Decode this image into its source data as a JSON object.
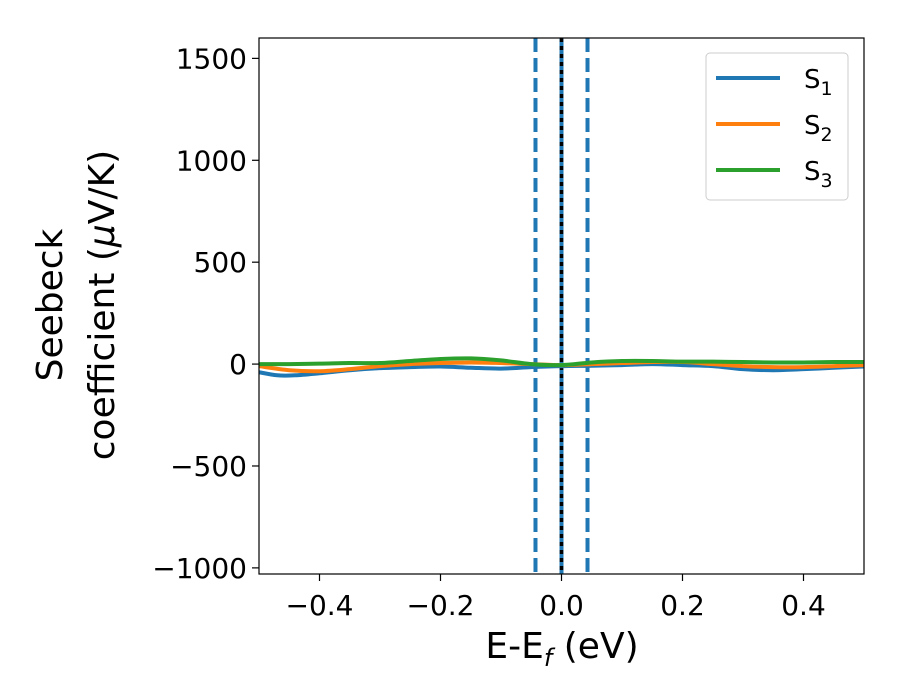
{
  "chart_data": {
    "type": "line",
    "xlabel": "E-E_f (eV)",
    "xlabel_parts": {
      "main": "E-E",
      "sub": "f",
      "tail": " (eV)"
    },
    "ylabel_line1": "Seebeck",
    "ylabel_line2_prefix": "coefficient  (",
    "ylabel_mu": "μ",
    "ylabel_line2_suffix": "V/K)",
    "xlim": [
      -0.5,
      0.5
    ],
    "ylim": [
      -1030,
      1600
    ],
    "x_ticks": [
      -0.4,
      -0.2,
      0.0,
      0.2,
      0.4
    ],
    "x_tick_labels": [
      "−0.4",
      "−0.2",
      "0.0",
      "0.2",
      "0.4"
    ],
    "y_ticks": [
      -1000,
      -500,
      0,
      500,
      1000,
      1500
    ],
    "y_tick_labels": [
      "−1000",
      "−500",
      "0",
      "500",
      "1000",
      "1500"
    ],
    "grid": false,
    "legend_position": "top-right",
    "vlines": [
      {
        "x": -0.043,
        "style": "dashed",
        "color": "#1f77b4"
      },
      {
        "x": 0.0,
        "style": "solid",
        "color": "#1f77b4"
      },
      {
        "x": 0.0,
        "style": "dotted",
        "color": "#000000"
      },
      {
        "x": 0.043,
        "style": "dashed",
        "color": "#1f77b4"
      }
    ],
    "series": [
      {
        "name": "S",
        "sub": "1",
        "color": "#1f77b4",
        "x": [
          -0.5,
          -0.47,
          -0.44,
          -0.4,
          -0.35,
          -0.3,
          -0.25,
          -0.2,
          -0.15,
          -0.1,
          -0.05,
          0.0,
          0.05,
          0.1,
          0.15,
          0.2,
          0.25,
          0.3,
          0.35,
          0.4,
          0.45,
          0.5
        ],
        "y": [
          -40,
          -55,
          -55,
          -45,
          -30,
          -20,
          -15,
          -12,
          -18,
          -22,
          -15,
          -10,
          -8,
          -5,
          0,
          -5,
          -10,
          -25,
          -30,
          -25,
          -18,
          -12
        ]
      },
      {
        "name": "S",
        "sub": "2",
        "color": "#ff7f0e",
        "x": [
          -0.5,
          -0.45,
          -0.4,
          -0.35,
          -0.3,
          -0.25,
          -0.2,
          -0.15,
          -0.1,
          -0.05,
          0.0,
          0.05,
          0.1,
          0.15,
          0.2,
          0.25,
          0.3,
          0.35,
          0.4,
          0.45,
          0.5
        ],
        "y": [
          -10,
          -30,
          -35,
          -25,
          -10,
          0,
          5,
          8,
          5,
          0,
          -5,
          0,
          5,
          10,
          10,
          0,
          -10,
          -15,
          -15,
          -10,
          -5
        ]
      },
      {
        "name": "S",
        "sub": "3",
        "color": "#2ca02c",
        "x": [
          -0.5,
          -0.45,
          -0.4,
          -0.35,
          -0.3,
          -0.25,
          -0.2,
          -0.15,
          -0.1,
          -0.05,
          0.0,
          0.05,
          0.1,
          0.15,
          0.2,
          0.25,
          0.3,
          0.35,
          0.4,
          0.45,
          0.5
        ],
        "y": [
          0,
          0,
          2,
          5,
          5,
          15,
          25,
          28,
          18,
          0,
          -5,
          8,
          15,
          15,
          12,
          12,
          10,
          8,
          8,
          10,
          10
        ]
      }
    ]
  }
}
